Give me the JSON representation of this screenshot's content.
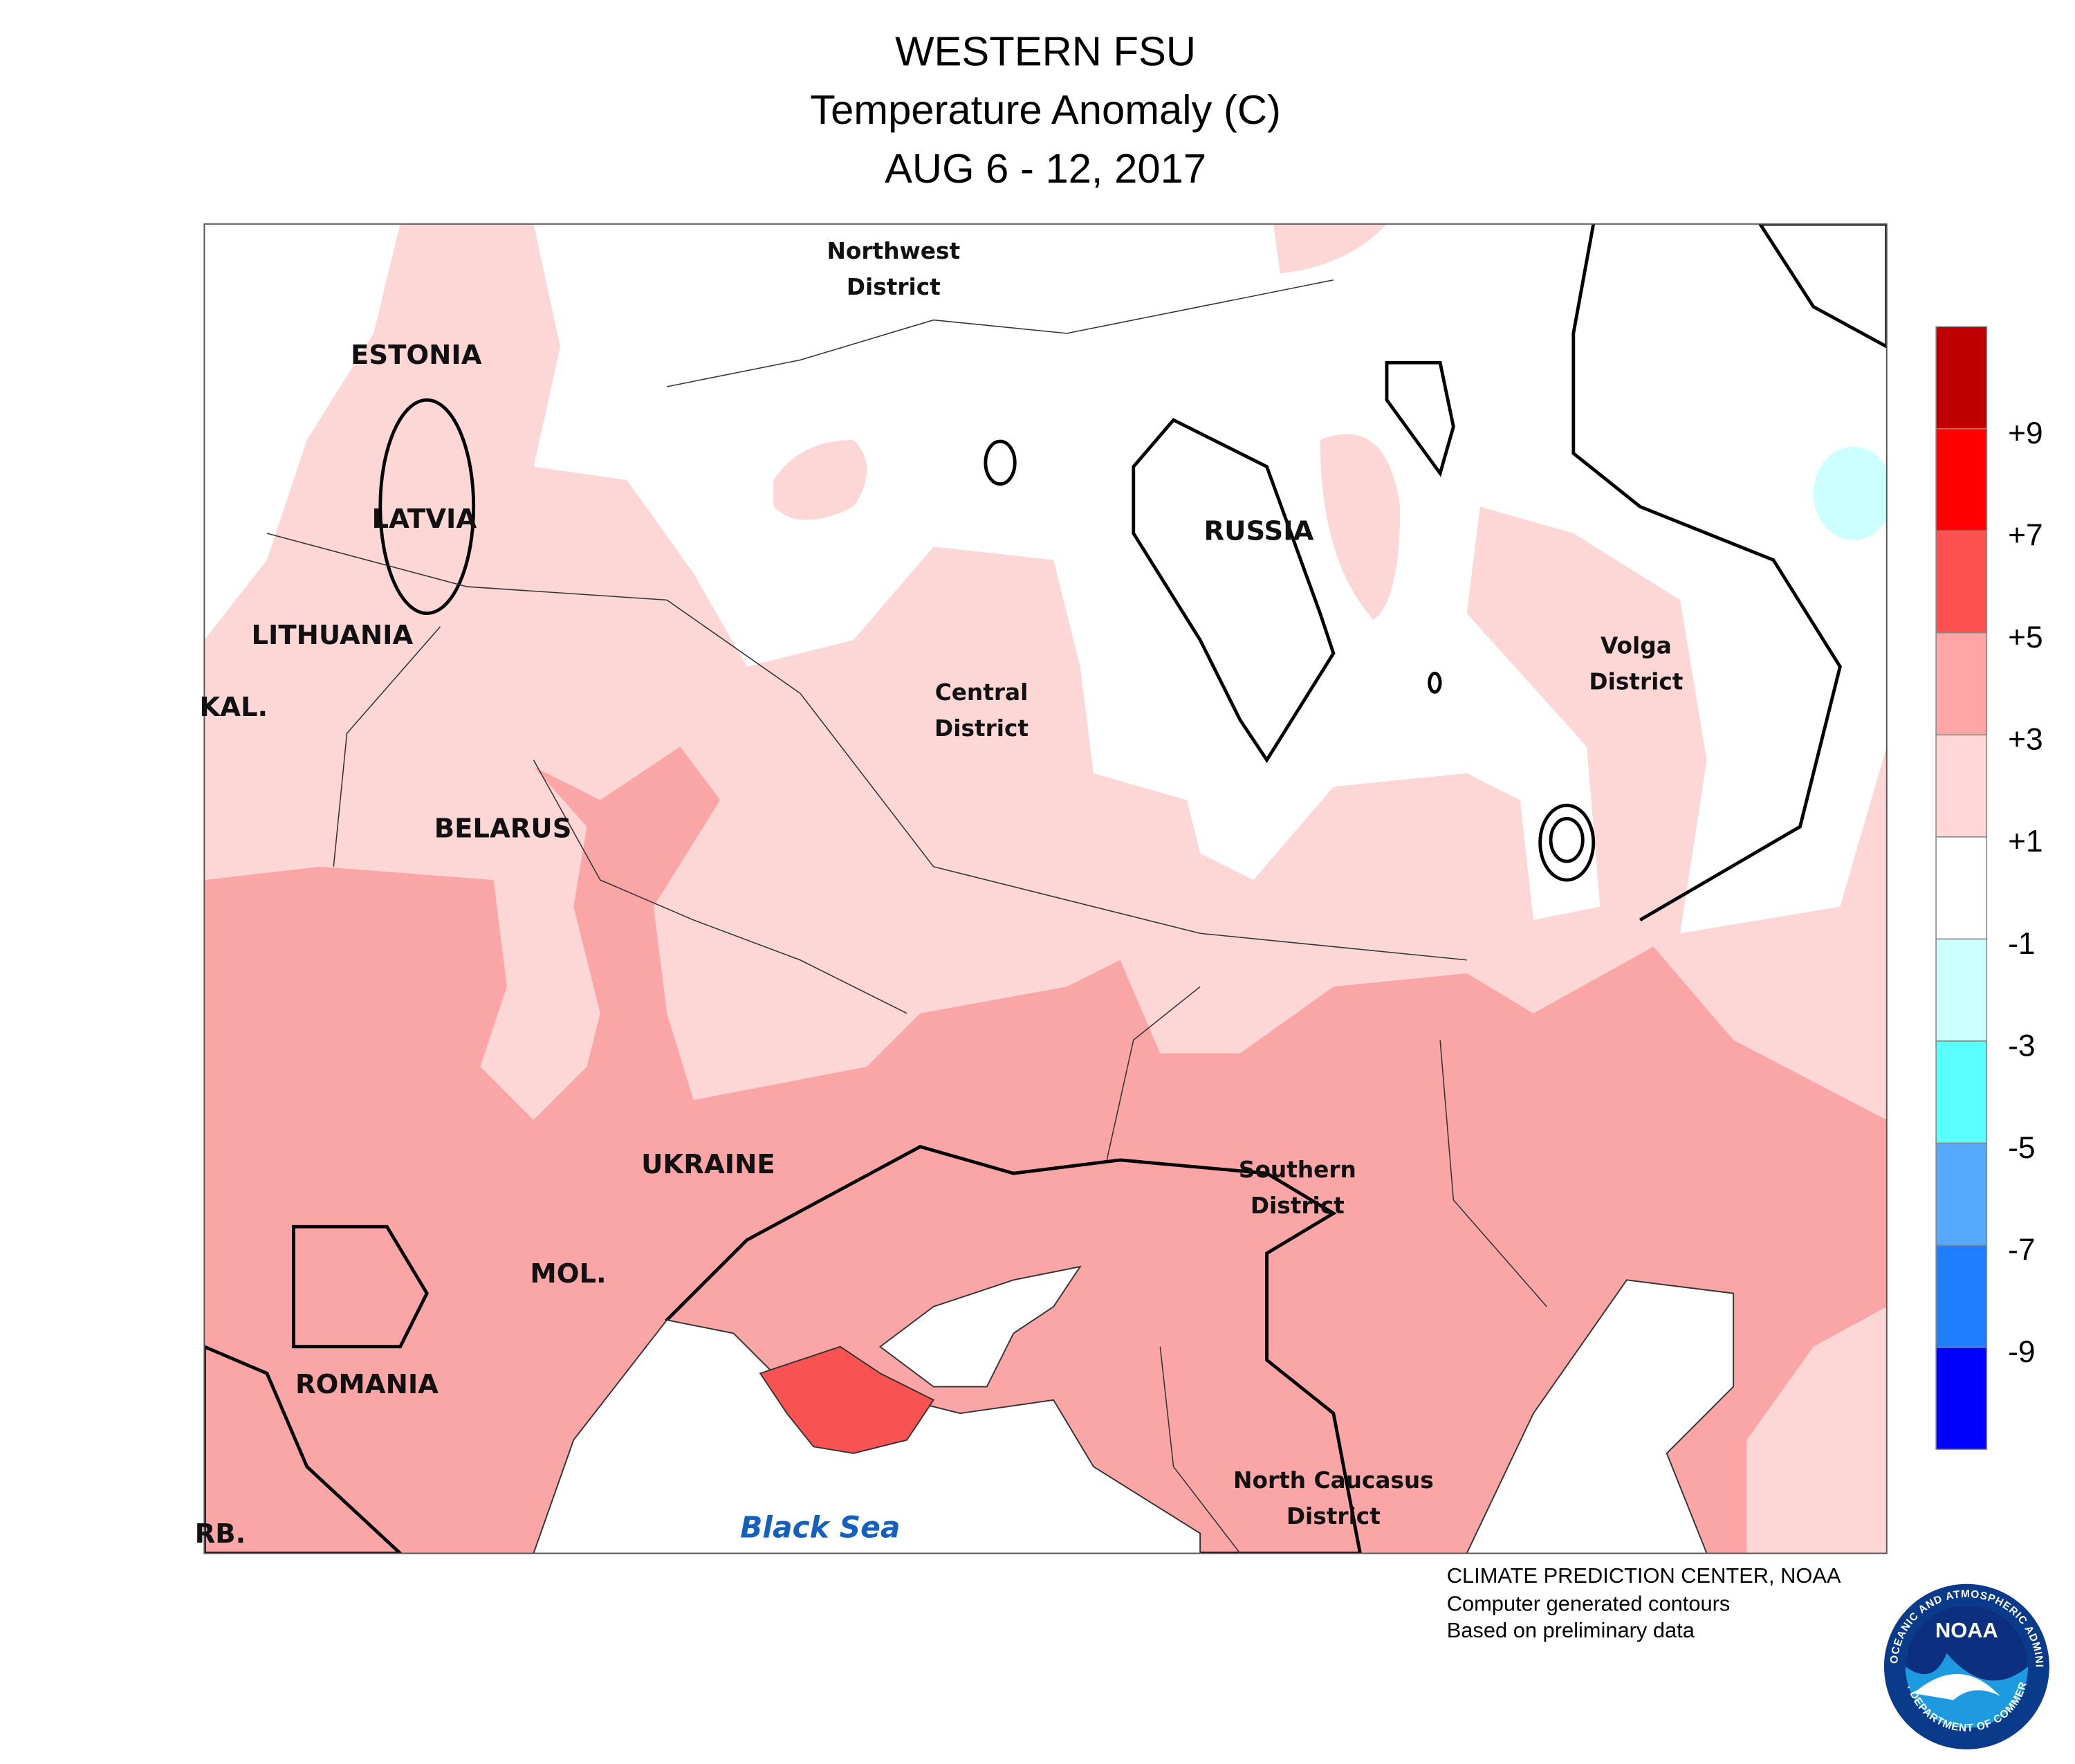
{
  "header": {
    "title": "WESTERN FSU",
    "subtitle": "Temperature Anomaly (C)",
    "period": "AUG 6 - 12, 2017"
  },
  "map": {
    "labels": [
      {
        "lines": [
          "Northwest",
          "District"
        ]
      },
      {
        "lines": [
          "ESTONIA"
        ]
      },
      {
        "lines": [
          "LATVIA"
        ]
      },
      {
        "lines": [
          "LITHUANIA"
        ]
      },
      {
        "lines": [
          "KAL."
        ]
      },
      {
        "lines": [
          "BELARUS"
        ]
      },
      {
        "lines": [
          "RUSSIA"
        ]
      },
      {
        "lines": [
          "Central",
          "District"
        ]
      },
      {
        "lines": [
          "Volga",
          "District"
        ]
      },
      {
        "lines": [
          "UKRAINE"
        ]
      },
      {
        "lines": [
          "Southern",
          "District"
        ]
      },
      {
        "lines": [
          "MOL."
        ]
      },
      {
        "lines": [
          "ROMANIA"
        ]
      },
      {
        "lines": [
          "North Caucasus",
          "District"
        ]
      },
      {
        "lines": [
          "RB."
        ]
      }
    ],
    "sea": "Black Sea"
  },
  "legend": {
    "colors": [
      "#c00000",
      "#ff0000",
      "#ff5050",
      "#ffa5a5",
      "#ffd7d7",
      "#ffffff",
      "#ccffff",
      "#5cffff",
      "#55aaff",
      "#1f7fff",
      "#0000ff"
    ],
    "ticks": [
      "+9",
      "+7",
      "+5",
      "+3",
      "+1",
      "-1",
      "-3",
      "-5",
      "-7",
      "-9"
    ]
  },
  "credits": [
    "CLIMATE PREDICTION CENTER, NOAA",
    "Computer generated contours",
    "Based on preliminary data"
  ],
  "logo": {
    "text": "NOAA",
    "ring_top": "NATIONAL OCEANIC AND ATMOSPHERIC ADMINISTRATION",
    "ring_bottom": "U.S. DEPARTMENT OF COMMERCE"
  }
}
